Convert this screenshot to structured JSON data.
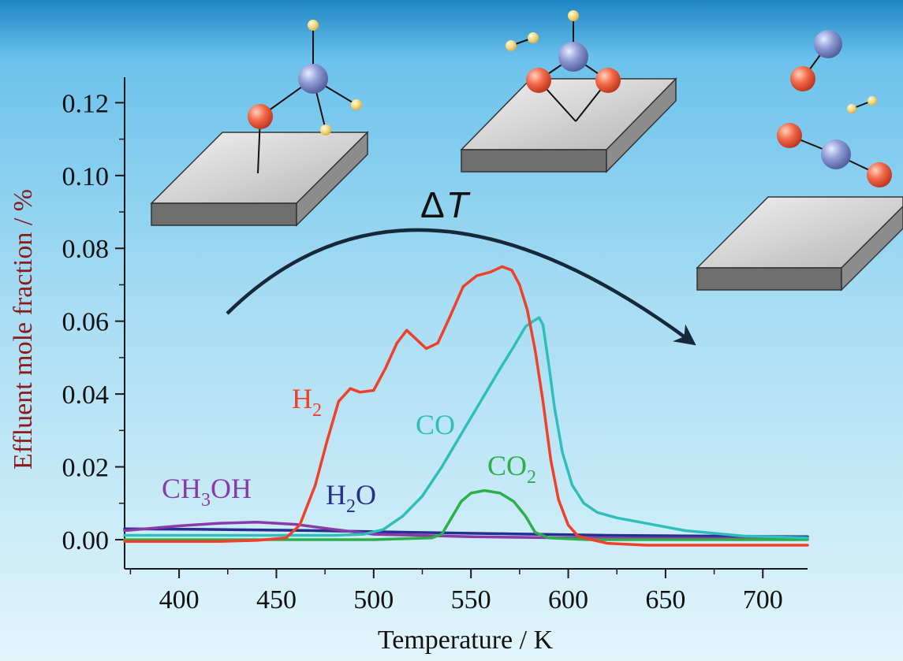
{
  "chart_data": {
    "type": "line",
    "title": "",
    "xlabel": "Temperature / K",
    "ylabel": "Effluent mole fraction / %",
    "xlim": [
      372,
      723
    ],
    "ylim": [
      -0.008,
      0.127
    ],
    "x_ticks": [
      400,
      450,
      500,
      550,
      600,
      650,
      700
    ],
    "x_tick_labels": [
      "400",
      "450",
      "500",
      "550",
      "600",
      "650",
      "700"
    ],
    "y_ticks": [
      0.0,
      0.02,
      0.04,
      0.06,
      0.08,
      0.1,
      0.12
    ],
    "y_tick_labels": [
      "0.00",
      "0.02",
      "0.04",
      "0.06",
      "0.08",
      "0.10",
      "0.12"
    ],
    "grid": false,
    "legend": "none (series labelled directly on the plot)",
    "series": [
      {
        "name": "H2",
        "label_main": "H",
        "label_sub": "2",
        "color": "#f0402a",
        "x": [
          372,
          400,
          420,
          440,
          455,
          462,
          470,
          476,
          482,
          488,
          493,
          500,
          506,
          512,
          517,
          522,
          527,
          533,
          539,
          546,
          553,
          560,
          566,
          571,
          575,
          579,
          583,
          587,
          591,
          595,
          600,
          605,
          612,
          620,
          640,
          670,
          700,
          723
        ],
        "y": [
          -0.0005,
          -0.0005,
          -0.0005,
          -0.0002,
          0.0005,
          0.004,
          0.015,
          0.027,
          0.038,
          0.0415,
          0.0405,
          0.041,
          0.047,
          0.054,
          0.0575,
          0.055,
          0.0525,
          0.054,
          0.061,
          0.0695,
          0.0725,
          0.0735,
          0.075,
          0.074,
          0.07,
          0.063,
          0.052,
          0.038,
          0.022,
          0.011,
          0.004,
          0.001,
          0.0,
          -0.001,
          -0.0015,
          -0.0015,
          -0.0015,
          -0.0015
        ]
      },
      {
        "name": "CO",
        "label_main": "CO",
        "label_sub": "",
        "color": "#2fbfba",
        "x": [
          372,
          450,
          480,
          495,
          505,
          515,
          525,
          535,
          545,
          555,
          565,
          572,
          578,
          582,
          585,
          587,
          590,
          593,
          597,
          602,
          608,
          615,
          625,
          640,
          660,
          690,
          723
        ],
        "y": [
          0.0012,
          0.0012,
          0.0012,
          0.0015,
          0.0028,
          0.0065,
          0.012,
          0.02,
          0.029,
          0.038,
          0.047,
          0.053,
          0.0585,
          0.06,
          0.061,
          0.059,
          0.048,
          0.036,
          0.024,
          0.015,
          0.01,
          0.0075,
          0.006,
          0.0045,
          0.0025,
          0.001,
          0.0005
        ]
      },
      {
        "name": "CO2",
        "label_main": "CO",
        "label_sub": "2",
        "color": "#2eaf4a",
        "x": [
          372,
          500,
          530,
          535,
          540,
          545,
          550,
          557,
          565,
          572,
          578,
          583,
          590,
          610,
          650,
          723
        ],
        "y": [
          0.0,
          0.0,
          0.0005,
          0.0015,
          0.006,
          0.0105,
          0.0128,
          0.0135,
          0.0128,
          0.0105,
          0.0065,
          0.002,
          0.0005,
          0.0,
          0.0,
          0.0
        ]
      },
      {
        "name": "CH3OH",
        "label_main": "CH",
        "label_sub": "3",
        "label_tail": "OH",
        "color": "#8a3aa8",
        "x": [
          372,
          400,
          420,
          440,
          460,
          480,
          500,
          550,
          600,
          650,
          723
        ],
        "y": [
          0.0025,
          0.0038,
          0.0045,
          0.0048,
          0.0042,
          0.0028,
          0.0015,
          0.0008,
          0.0005,
          0.0004,
          0.0003
        ]
      },
      {
        "name": "H2O",
        "label_main": "H",
        "label_sub": "2",
        "label_tail": "O",
        "color": "#262f8f",
        "x": [
          372,
          420,
          470,
          520,
          570,
          620,
          670,
          723
        ],
        "y": [
          0.003,
          0.0028,
          0.0025,
          0.002,
          0.0016,
          0.0012,
          0.001,
          0.0008
        ]
      }
    ],
    "annotations": [
      {
        "name": "temperature-increase",
        "main": "Δ",
        "italic": "T",
        "kind": "curved-arrow"
      }
    ]
  },
  "style": {
    "axis_label_color": "#8b1a1a",
    "axis_color": "#1a1a1a",
    "arrow_color": "#16283a",
    "background_top": "#1e86c6",
    "background_bottom": "#e2f5fb"
  }
}
